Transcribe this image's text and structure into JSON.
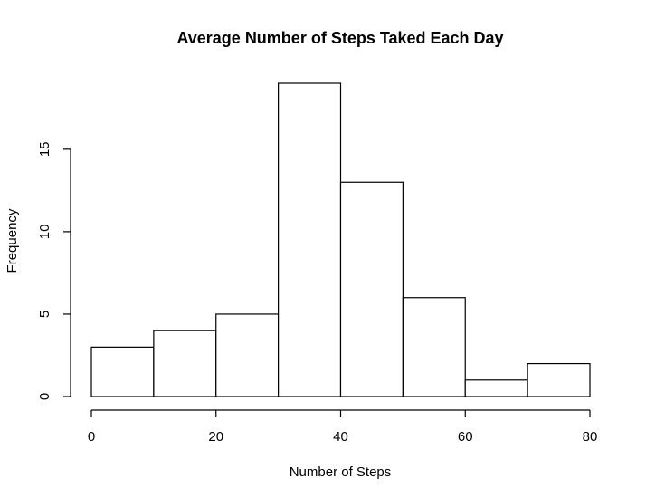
{
  "chart_data": {
    "type": "bar",
    "title": "Average Number of Steps Taked Each Day",
    "xlabel": "Number of Steps",
    "ylabel": "Frequency",
    "bins": [
      {
        "start": 0,
        "end": 10,
        "value": 3
      },
      {
        "start": 10,
        "end": 20,
        "value": 4
      },
      {
        "start": 20,
        "end": 30,
        "value": 5
      },
      {
        "start": 30,
        "end": 40,
        "value": 19
      },
      {
        "start": 40,
        "end": 50,
        "value": 13
      },
      {
        "start": 50,
        "end": 60,
        "value": 6
      },
      {
        "start": 60,
        "end": 70,
        "value": 1
      },
      {
        "start": 70,
        "end": 80,
        "value": 2
      }
    ],
    "xlim": [
      0,
      80
    ],
    "ylim": [
      0,
      19
    ],
    "xticks": [
      0,
      20,
      40,
      60,
      80
    ],
    "yticks": [
      0,
      5,
      10,
      15
    ],
    "grid": false,
    "colors": {
      "bar_fill": "#ffffff",
      "bar_stroke": "#000000"
    }
  }
}
